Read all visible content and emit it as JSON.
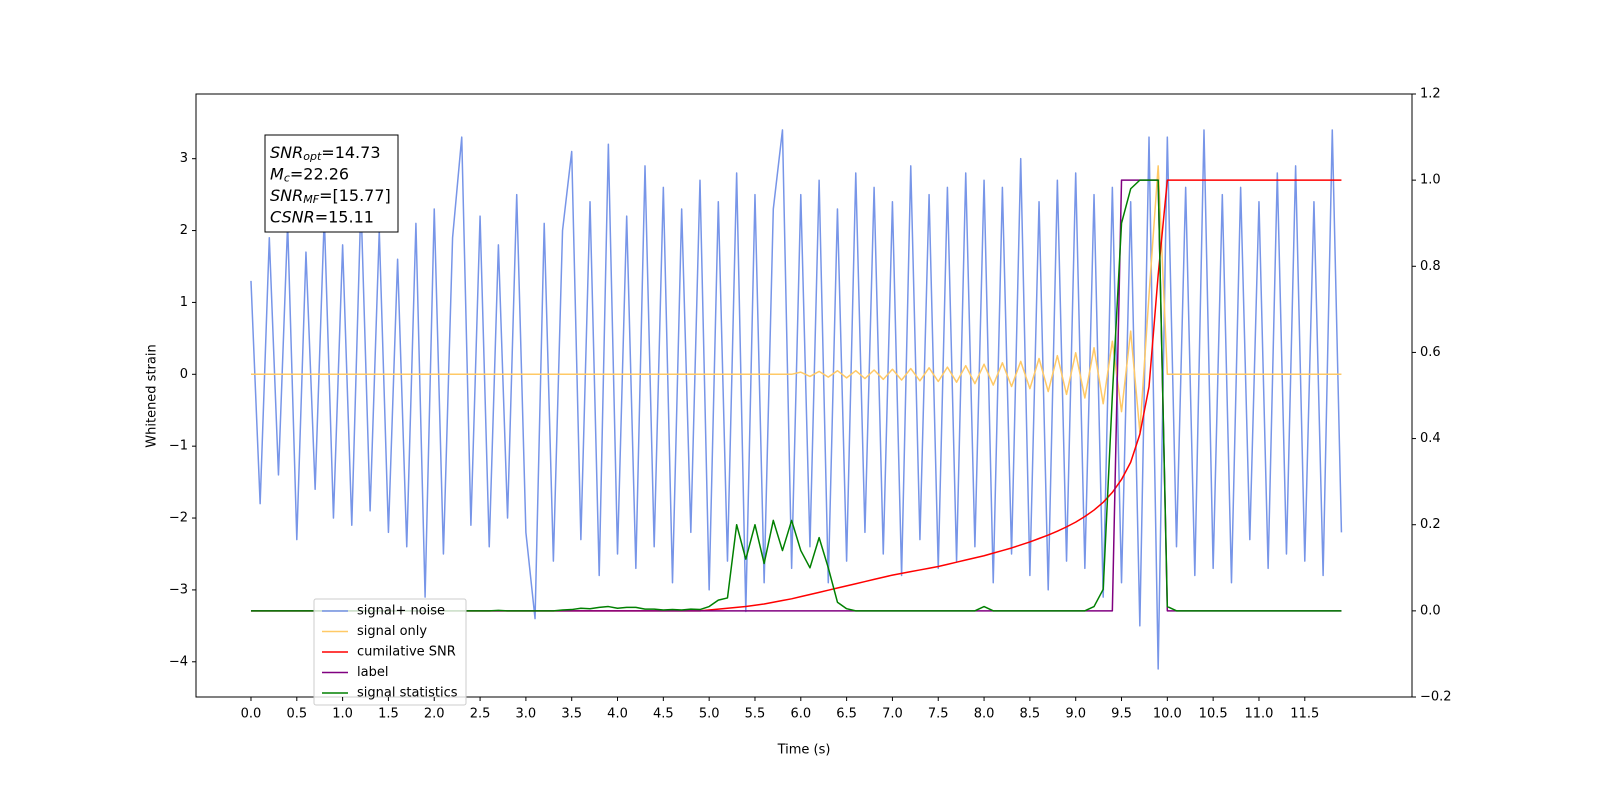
{
  "chart_data": {
    "type": "line",
    "xlabel": "Time (s)",
    "ylabel": "Whitened strain",
    "annotations": [
      {
        "name": "SNR",
        "sub": "opt",
        "text": "=14.73"
      },
      {
        "name": "M",
        "sub": "c",
        "text": "=22.26"
      },
      {
        "name": "SNR",
        "sub": "MF",
        "text": "=[15.77]"
      },
      {
        "name": "CSNR",
        "text": "=15.11"
      }
    ],
    "legend": "lower left",
    "grid": false,
    "xlim": [
      -0.6,
      12.67
    ],
    "ylim": [
      -4.49,
      3.9
    ],
    "y2lim": [
      -0.2,
      1.2
    ],
    "xticks": [
      {
        "value": 0,
        "label": "0.0"
      },
      0.5,
      {
        "value": 1,
        "label": "1.0"
      },
      1.5,
      {
        "value": 2,
        "label": "2.0"
      },
      2.5,
      {
        "value": 3,
        "label": "3.0"
      },
      3.5,
      {
        "value": 4,
        "label": "4.0"
      },
      4.5,
      {
        "value": 5,
        "label": "5.0"
      },
      5.5,
      {
        "value": 6,
        "label": "6.0"
      },
      6.5,
      {
        "value": 7,
        "label": "7.0"
      },
      7.5,
      {
        "value": 8,
        "label": "8.0"
      },
      8.5,
      {
        "value": 9,
        "label": "9.0"
      },
      9.5,
      {
        "value": 10,
        "label": "10.0"
      },
      10.5,
      {
        "value": 11,
        "label": "11.0"
      },
      11.5
    ],
    "yticks": [
      {
        "value": -4,
        "label": "−4"
      },
      {
        "value": -3,
        "label": "−3"
      },
      {
        "value": -2,
        "label": "−2"
      },
      {
        "value": -1,
        "label": "−1"
      },
      0,
      1,
      2,
      3
    ],
    "y2ticks": [
      {
        "value": -0.2,
        "label": "−0.2"
      },
      {
        "value": 0,
        "label": "0.0"
      },
      0.2,
      0.4,
      0.6,
      0.8,
      {
        "value": 1,
        "label": "1.0"
      },
      1.2
    ],
    "x": [
      0,
      0.1,
      0.2,
      0.3,
      0.4,
      0.5,
      0.6,
      0.7,
      0.8,
      0.9,
      1,
      1.1,
      1.2,
      1.3,
      1.4,
      1.5,
      1.6,
      1.7,
      1.8,
      1.9,
      2,
      2.1,
      2.2,
      2.3,
      2.4,
      2.5,
      2.6,
      2.7,
      2.8,
      2.9,
      3,
      3.1,
      3.2,
      3.3,
      3.4,
      3.5,
      3.6,
      3.7,
      3.8,
      3.9,
      4,
      4.1,
      4.2,
      4.3,
      4.4,
      4.5,
      4.6,
      4.7,
      4.8,
      4.9,
      5,
      5.1,
      5.2,
      5.3,
      5.4,
      5.5,
      5.6,
      5.7,
      5.8,
      5.9,
      6,
      6.1,
      6.2,
      6.3,
      6.4,
      6.5,
      6.6,
      6.7,
      6.8,
      6.9,
      7,
      7.1,
      7.2,
      7.3,
      7.4,
      7.5,
      7.6,
      7.7,
      7.8,
      7.9,
      8,
      8.1,
      8.2,
      8.3,
      8.4,
      8.5,
      8.6,
      8.7,
      8.8,
      8.9,
      9,
      9.1,
      9.2,
      9.3,
      9.4,
      9.5,
      9.6,
      9.7,
      9.8,
      9.9,
      10,
      10.1,
      10.2,
      10.3,
      10.4,
      10.5,
      10.6,
      10.7,
      10.8,
      10.9,
      11,
      11.1,
      11.2,
      11.3,
      11.4,
      11.5,
      11.6,
      11.7,
      11.8,
      11.9
    ],
    "series": [
      {
        "name": "signal+ noise",
        "color": "#7795e8",
        "values": [
          1.3,
          -1.8,
          1.9,
          -1.4,
          2.1,
          -2.3,
          1.7,
          -1.6,
          2.2,
          -2.0,
          1.8,
          -2.1,
          2.4,
          -1.9,
          2.0,
          -2.2,
          1.6,
          -2.4,
          2.1,
          -3.1,
          2.3,
          -2.5,
          1.9,
          3.3,
          -2.1,
          2.2,
          -2.4,
          1.8,
          -2.0,
          2.5,
          -2.2,
          -3.4,
          2.1,
          -2.6,
          2.0,
          3.1,
          -2.3,
          2.4,
          -2.8,
          3.2,
          -2.5,
          2.2,
          -2.7,
          2.9,
          -2.4,
          2.6,
          -2.9,
          2.3,
          -2.2,
          2.7,
          -3.0,
          2.4,
          -2.6,
          2.8,
          -3.3,
          2.5,
          -2.9,
          2.3,
          3.4,
          -2.7,
          2.5,
          -2.4,
          2.7,
          -2.9,
          2.3,
          -2.6,
          2.8,
          -2.2,
          2.6,
          -2.5,
          2.4,
          -2.8,
          2.9,
          -2.3,
          2.5,
          -2.7,
          2.6,
          -2.6,
          2.8,
          -2.4,
          2.7,
          -2.9,
          2.6,
          -2.5,
          3.0,
          -2.8,
          2.4,
          -3.0,
          2.7,
          -2.6,
          2.8,
          -2.7,
          2.5,
          -3.1,
          2.6,
          -2.9,
          2.4,
          -3.5,
          3.3,
          -4.1,
          3.3,
          -2.4,
          2.6,
          -2.8,
          3.4,
          -2.7,
          2.5,
          -2.9,
          2.6,
          -2.3,
          2.4,
          -2.7,
          2.8,
          -2.5,
          2.9,
          -2.6,
          2.4,
          -2.8,
          3.4,
          -2.2
        ]
      },
      {
        "name": "signal only",
        "color": "#ffc966",
        "values": [
          0,
          0,
          0,
          0,
          0,
          0,
          0,
          0,
          0,
          0,
          0,
          0,
          0,
          0,
          0,
          0,
          0,
          0,
          0,
          0,
          0,
          0,
          0,
          0,
          0,
          0,
          0,
          0,
          0,
          0,
          0,
          0,
          0,
          0,
          0,
          0,
          0,
          0,
          0,
          0,
          0,
          0,
          0,
          0,
          0,
          0,
          0,
          0,
          0,
          0,
          0,
          0,
          0,
          0,
          0,
          0,
          0,
          0,
          0,
          0,
          0.03,
          -0.03,
          0.04,
          -0.04,
          0.05,
          -0.05,
          0.05,
          -0.06,
          0.06,
          -0.07,
          0.07,
          -0.08,
          0.08,
          -0.09,
          0.09,
          -0.1,
          0.1,
          -0.11,
          0.12,
          -0.13,
          0.14,
          -0.15,
          0.16,
          -0.17,
          0.18,
          -0.2,
          0.22,
          -0.24,
          0.26,
          -0.28,
          0.3,
          -0.33,
          0.37,
          -0.41,
          0.46,
          -0.52,
          0.6,
          -0.8,
          1.1,
          2.9,
          0,
          0,
          0,
          0,
          0,
          0,
          0,
          0,
          0,
          0,
          0,
          0,
          0,
          0,
          0,
          0,
          0,
          0,
          0,
          0
        ]
      },
      {
        "name": "cumilative SNR",
        "color": "#ff0000",
        "axis": "y2",
        "values": [
          0,
          0,
          0,
          0,
          0,
          0,
          0,
          0,
          0,
          0,
          0,
          0,
          0,
          0,
          0,
          0,
          0,
          0,
          0,
          0,
          0,
          0,
          0,
          0,
          0,
          0,
          0,
          0,
          0,
          0,
          0,
          0,
          0,
          0,
          0,
          0,
          0,
          0,
          0,
          0,
          0,
          0,
          0,
          0,
          0,
          0,
          0,
          0,
          0,
          0,
          0.002,
          0.004,
          0.006,
          0.008,
          0.01,
          0.013,
          0.016,
          0.02,
          0.024,
          0.028,
          0.033,
          0.038,
          0.043,
          0.048,
          0.053,
          0.058,
          0.063,
          0.068,
          0.073,
          0.078,
          0.083,
          0.087,
          0.091,
          0.095,
          0.099,
          0.103,
          0.108,
          0.113,
          0.118,
          0.123,
          0.128,
          0.134,
          0.14,
          0.146,
          0.153,
          0.16,
          0.168,
          0.176,
          0.185,
          0.195,
          0.206,
          0.219,
          0.234,
          0.252,
          0.275,
          0.305,
          0.345,
          0.41,
          0.52,
          0.78,
          1,
          1,
          1,
          1,
          1,
          1,
          1,
          1,
          1,
          1,
          1,
          1,
          1,
          1,
          1,
          1,
          1,
          1,
          1,
          1
        ]
      },
      {
        "name": "label",
        "color": "#800080",
        "axis": "y2",
        "values": [
          0,
          0,
          0,
          0,
          0,
          0,
          0,
          0,
          0,
          0,
          0,
          0,
          0,
          0,
          0,
          0,
          0,
          0,
          0,
          0,
          0,
          0,
          0,
          0,
          0,
          0,
          0,
          0,
          0,
          0,
          0,
          0,
          0,
          0,
          0,
          0,
          0,
          0,
          0,
          0,
          0,
          0,
          0,
          0,
          0,
          0,
          0,
          0,
          0,
          0,
          0,
          0,
          0,
          0,
          0,
          0,
          0,
          0,
          0,
          0,
          0,
          0,
          0,
          0,
          0,
          0,
          0,
          0,
          0,
          0,
          0,
          0,
          0,
          0,
          0,
          0,
          0,
          0,
          0,
          0,
          0,
          0,
          0,
          0,
          0,
          0,
          0,
          0,
          0,
          0,
          0,
          0,
          0,
          0,
          0,
          1,
          1,
          1,
          1,
          1,
          0,
          0,
          0,
          0,
          0,
          0,
          0,
          0,
          0,
          0,
          0,
          0,
          0,
          0,
          0,
          0,
          0,
          0,
          0,
          0
        ]
      },
      {
        "name": "signal statistics",
        "color": "#008000",
        "axis": "y2",
        "values": [
          0,
          0,
          0,
          0,
          0,
          0,
          0,
          0,
          0,
          0,
          0,
          0,
          0,
          0,
          0,
          0,
          0,
          0,
          0,
          0,
          0,
          0,
          0,
          0,
          0,
          0,
          0,
          0.001,
          0,
          0,
          0,
          0,
          0,
          0,
          0.002,
          0.003,
          0.006,
          0.005,
          0.008,
          0.01,
          0.006,
          0.008,
          0.008,
          0.004,
          0.004,
          0.002,
          0.003,
          0.002,
          0.004,
          0.003,
          0.01,
          0.025,
          0.03,
          0.2,
          0.12,
          0.2,
          0.11,
          0.21,
          0.14,
          0.21,
          0.14,
          0.1,
          0.17,
          0.1,
          0.02,
          0.005,
          0,
          0,
          0,
          0,
          0,
          0,
          0,
          0,
          0,
          0,
          0,
          0,
          0,
          0,
          0.01,
          0,
          0,
          0,
          0,
          0,
          0,
          0,
          0,
          0,
          0,
          0,
          0.01,
          0.05,
          0.5,
          0.9,
          0.98,
          1,
          1,
          1,
          0.01,
          0,
          0,
          0,
          0,
          0,
          0,
          0,
          0,
          0,
          0,
          0,
          0,
          0,
          0,
          0,
          0,
          0,
          0,
          0
        ]
      }
    ]
  }
}
